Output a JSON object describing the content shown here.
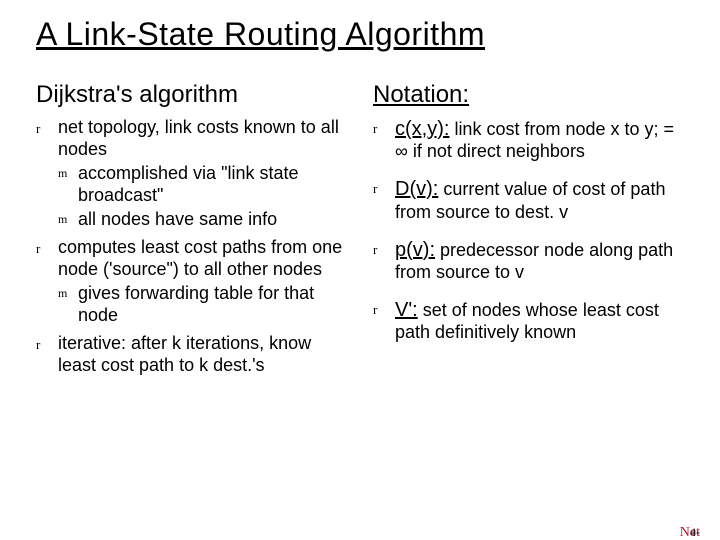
{
  "title": "A Link-State Routing Algorithm",
  "left": {
    "heading": "Dijkstra's algorithm",
    "items": [
      {
        "text": "net topology, link costs known to all nodes",
        "sub": [
          "accomplished via \"link state broadcast\"",
          "all nodes have same info"
        ]
      },
      {
        "text": "computes least cost paths from one node ('source\") to all other nodes",
        "sub": [
          "gives forwarding table for that node"
        ]
      },
      {
        "text": "iterative: after k iterations, know least cost path to k dest.'s",
        "sub": []
      }
    ]
  },
  "right": {
    "heading": "Notation:",
    "items": [
      {
        "term": "c(x,y):",
        "desc": " link cost from node x to y;  = ∞ if not direct neighbors"
      },
      {
        "term": "D(v):",
        "desc": " current value of cost of path from source to dest. v"
      },
      {
        "term": "p(v):",
        "desc": " predecessor node along path from source to v"
      },
      {
        "term": "V':",
        "desc": " set of nodes whose least cost path definitively known"
      }
    ]
  },
  "bullets": {
    "r": "r",
    "m": "m"
  },
  "footer": {
    "label": "Net",
    "number": "4-19"
  }
}
